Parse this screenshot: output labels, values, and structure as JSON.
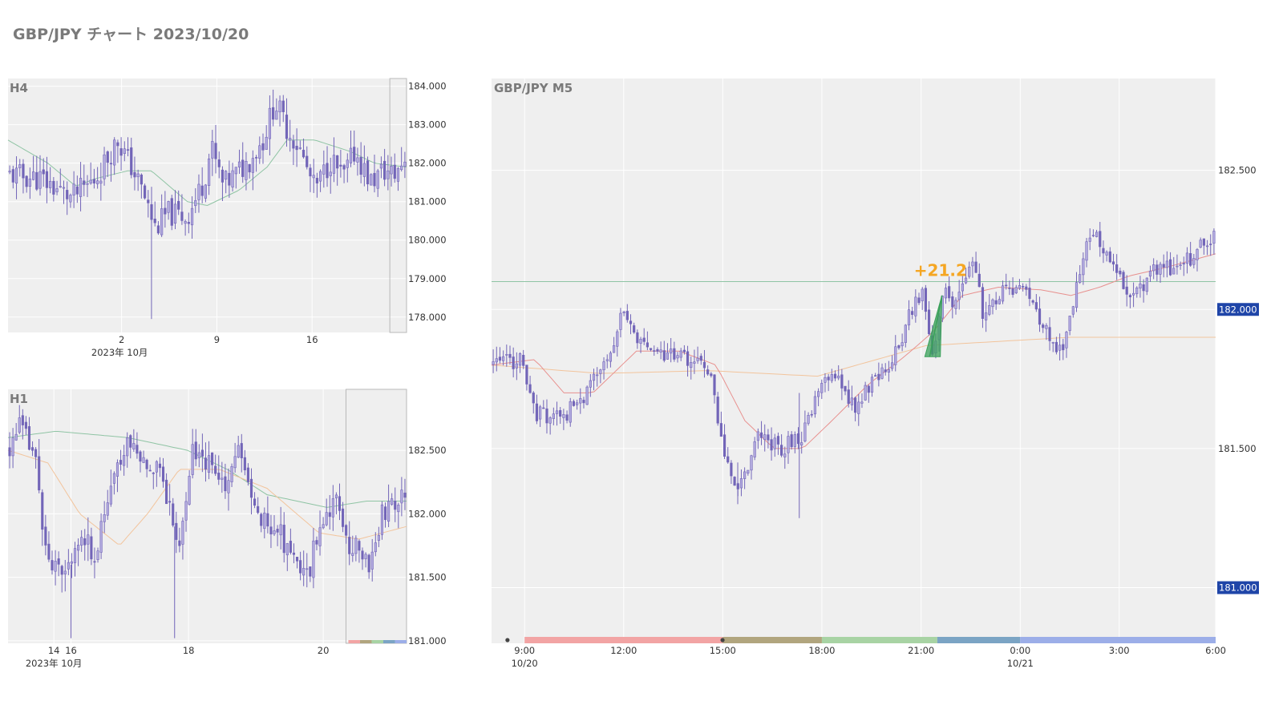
{
  "title": "GBP/JPY チャート 2023/10/20",
  "colors": {
    "plot_bg": "#efefef",
    "grid": "#ffffff",
    "candle": "#7265b8",
    "candle_light": "#b3abdf",
    "ma_green": "#8fc4a4",
    "ma_orange": "#f2c49c",
    "ma_red": "#e8908e",
    "label_gray": "#7a7a7a",
    "tick_text": "#333333",
    "badge_bg": "#1f45a8",
    "annotation": "#f5a623",
    "trade": "#3aa05a"
  },
  "chart_data": [
    {
      "id": "h4",
      "type": "candlestick",
      "panel_label": "H4",
      "ylim": [
        177.6,
        184.2
      ],
      "y_ticks": [
        "178.000",
        "179.000",
        "180.000",
        "181.000",
        "182.000",
        "183.000",
        "184.000"
      ],
      "x_ticks": [
        {
          "label": "2",
          "x": 0.285
        },
        {
          "label": "9",
          "x": 0.524
        },
        {
          "label": "16",
          "x": 0.763
        }
      ],
      "x_sublabel": "2023年 10月",
      "anchors": [
        [
          0.0,
          181.7
        ],
        [
          0.08,
          181.6
        ],
        [
          0.16,
          181.1
        ],
        [
          0.22,
          181.6
        ],
        [
          0.275,
          182.6
        ],
        [
          0.31,
          181.9
        ],
        [
          0.34,
          181.2
        ],
        [
          0.37,
          180.3
        ],
        [
          0.4,
          180.7
        ],
        [
          0.45,
          180.6
        ],
        [
          0.49,
          181.5
        ],
        [
          0.51,
          182.4
        ],
        [
          0.54,
          181.4
        ],
        [
          0.6,
          182.0
        ],
        [
          0.64,
          182.6
        ],
        [
          0.67,
          183.6
        ],
        [
          0.7,
          182.9
        ],
        [
          0.73,
          182.4
        ],
        [
          0.77,
          181.3
        ],
        [
          0.81,
          182.1
        ],
        [
          0.84,
          181.6
        ],
        [
          0.87,
          182.3
        ],
        [
          0.91,
          181.5
        ],
        [
          0.94,
          181.8
        ],
        [
          0.97,
          181.7
        ],
        [
          1.0,
          182.2
        ]
      ],
      "candle_count": 118,
      "ma": [
        {
          "color": "ma_green",
          "points": [
            [
              0.0,
              182.6
            ],
            [
              0.1,
              182.0
            ],
            [
              0.17,
              181.4
            ],
            [
              0.22,
              181.6
            ],
            [
              0.3,
              181.8
            ],
            [
              0.36,
              181.8
            ],
            [
              0.45,
              181.0
            ],
            [
              0.5,
              180.9
            ],
            [
              0.58,
              181.3
            ],
            [
              0.65,
              181.9
            ],
            [
              0.7,
              182.6
            ],
            [
              0.77,
              182.6
            ],
            [
              0.86,
              182.3
            ],
            [
              0.92,
              182.0
            ],
            [
              1.0,
              181.9
            ]
          ]
        }
      ],
      "highlight_x": [
        0.958,
        1.0
      ]
    },
    {
      "id": "h1",
      "type": "candlestick",
      "panel_label": "H1",
      "ylim": [
        180.98,
        182.98
      ],
      "y_ticks": [
        "181.000",
        "181.500",
        "182.000",
        "182.500"
      ],
      "x_ticks": [
        {
          "label": "14",
          "x": 0.115
        },
        {
          "label": "16",
          "x": 0.158
        },
        {
          "label": "18",
          "x": 0.453
        },
        {
          "label": "20",
          "x": 0.791
        }
      ],
      "x_sublabel": "2023年 10月",
      "anchors": [
        [
          0.0,
          182.5
        ],
        [
          0.03,
          182.7
        ],
        [
          0.07,
          182.4
        ],
        [
          0.1,
          181.6
        ],
        [
          0.14,
          181.5
        ],
        [
          0.17,
          181.8
        ],
        [
          0.22,
          181.7
        ],
        [
          0.26,
          182.2
        ],
        [
          0.3,
          182.6
        ],
        [
          0.34,
          182.4
        ],
        [
          0.38,
          182.4
        ],
        [
          0.41,
          182.0
        ],
        [
          0.43,
          181.7
        ],
        [
          0.46,
          182.5
        ],
        [
          0.5,
          182.4
        ],
        [
          0.54,
          182.2
        ],
        [
          0.58,
          182.5
        ],
        [
          0.62,
          182.0
        ],
        [
          0.67,
          181.9
        ],
        [
          0.71,
          181.7
        ],
        [
          0.75,
          181.5
        ],
        [
          0.79,
          182.0
        ],
        [
          0.82,
          182.1
        ],
        [
          0.85,
          181.8
        ],
        [
          0.88,
          181.7
        ],
        [
          0.91,
          181.6
        ],
        [
          0.94,
          182.0
        ],
        [
          0.97,
          182.1
        ],
        [
          1.0,
          182.2
        ]
      ],
      "candle_count": 122,
      "ma": [
        {
          "color": "ma_green",
          "points": [
            [
              0.0,
              182.6
            ],
            [
              0.12,
              182.65
            ],
            [
              0.3,
              182.6
            ],
            [
              0.45,
              182.5
            ],
            [
              0.55,
              182.35
            ],
            [
              0.65,
              182.15
            ],
            [
              0.8,
              182.05
            ],
            [
              0.9,
              182.1
            ],
            [
              1.0,
              182.1
            ]
          ]
        },
        {
          "color": "ma_orange",
          "points": [
            [
              0.0,
              182.5
            ],
            [
              0.1,
              182.4
            ],
            [
              0.18,
              182.0
            ],
            [
              0.28,
              181.75
            ],
            [
              0.35,
              182.0
            ],
            [
              0.43,
              182.35
            ],
            [
              0.53,
              182.35
            ],
            [
              0.65,
              182.2
            ],
            [
              0.78,
              181.85
            ],
            [
              0.88,
              181.8
            ],
            [
              1.0,
              181.9
            ]
          ]
        }
      ],
      "highlight_x": [
        0.848,
        1.0
      ]
    },
    {
      "id": "m5",
      "type": "candlestick",
      "panel_label": "GBP/JPY M5",
      "ylim": [
        180.8,
        182.83
      ],
      "y_ticks": [
        "181.500",
        "182.500"
      ],
      "y_badges": [
        "181.000",
        "182.000"
      ],
      "x_ticks": [
        {
          "label": "9:00",
          "x": 0.0456
        },
        {
          "label": "12:00",
          "x": 0.1825
        },
        {
          "label": "15:00",
          "x": 0.3193
        },
        {
          "label": "18:00",
          "x": 0.4562
        },
        {
          "label": "21:00",
          "x": 0.5932
        },
        {
          "label": "0:00",
          "x": 0.7301
        },
        {
          "label": "3:00",
          "x": 0.8668
        },
        {
          "label": "6:00",
          "x": 1.0
        }
      ],
      "x_sublabels": [
        {
          "label": "10/20",
          "x": 0.0456
        },
        {
          "label": "10/21",
          "x": 0.7301
        }
      ],
      "anchors": [
        [
          0.0,
          181.8
        ],
        [
          0.04,
          181.82
        ],
        [
          0.06,
          181.62
        ],
        [
          0.1,
          181.62
        ],
        [
          0.13,
          181.7
        ],
        [
          0.16,
          181.82
        ],
        [
          0.18,
          181.98
        ],
        [
          0.21,
          181.86
        ],
        [
          0.25,
          181.83
        ],
        [
          0.28,
          181.82
        ],
        [
          0.3,
          181.78
        ],
        [
          0.32,
          181.5
        ],
        [
          0.34,
          181.35
        ],
        [
          0.37,
          181.55
        ],
        [
          0.4,
          181.5
        ],
        [
          0.43,
          181.55
        ],
        [
          0.46,
          181.75
        ],
        [
          0.48,
          181.75
        ],
        [
          0.5,
          181.65
        ],
        [
          0.53,
          181.75
        ],
        [
          0.56,
          181.85
        ],
        [
          0.58,
          182.0
        ],
        [
          0.595,
          182.05
        ],
        [
          0.61,
          181.85
        ],
        [
          0.625,
          182.1
        ],
        [
          0.64,
          182.0
        ],
        [
          0.665,
          182.2
        ],
        [
          0.68,
          181.95
        ],
        [
          0.71,
          182.1
        ],
        [
          0.74,
          182.05
        ],
        [
          0.77,
          181.9
        ],
        [
          0.79,
          181.85
        ],
        [
          0.81,
          182.1
        ],
        [
          0.83,
          182.3
        ],
        [
          0.85,
          182.2
        ],
        [
          0.87,
          182.1
        ],
        [
          0.89,
          182.05
        ],
        [
          0.92,
          182.15
        ],
        [
          0.95,
          182.15
        ],
        [
          0.97,
          182.2
        ],
        [
          1.0,
          182.28
        ]
      ],
      "candle_count": 216,
      "ma": [
        {
          "color": "ma_green",
          "points": [
            [
              0.0,
              182.1
            ],
            [
              0.3,
              182.1
            ],
            [
              0.6,
              182.1
            ],
            [
              1.0,
              182.1
            ]
          ]
        },
        {
          "color": "ma_orange",
          "points": [
            [
              0.0,
              181.8
            ],
            [
              0.15,
              181.77
            ],
            [
              0.3,
              181.78
            ],
            [
              0.45,
              181.76
            ],
            [
              0.6,
              181.87
            ],
            [
              0.8,
              181.9
            ],
            [
              1.0,
              181.9
            ]
          ]
        },
        {
          "color": "ma_red",
          "points": [
            [
              0.0,
              181.8
            ],
            [
              0.06,
              181.82
            ],
            [
              0.1,
              181.7
            ],
            [
              0.14,
              181.7
            ],
            [
              0.2,
              181.85
            ],
            [
              0.26,
              181.85
            ],
            [
              0.31,
              181.8
            ],
            [
              0.35,
              181.6
            ],
            [
              0.39,
              181.5
            ],
            [
              0.43,
              181.5
            ],
            [
              0.47,
              181.6
            ],
            [
              0.52,
              181.73
            ],
            [
              0.57,
              181.83
            ],
            [
              0.61,
              181.92
            ],
            [
              0.65,
              182.05
            ],
            [
              0.7,
              182.08
            ],
            [
              0.76,
              182.07
            ],
            [
              0.8,
              182.05
            ],
            [
              0.84,
              182.08
            ],
            [
              0.88,
              182.12
            ],
            [
              0.93,
              182.15
            ],
            [
              1.0,
              182.2
            ]
          ]
        }
      ],
      "trade": {
        "x_start": 0.605,
        "y_start": 181.83,
        "x_end": 0.622,
        "y_end": 182.05
      },
      "annotation": {
        "label": "+21.2",
        "x": 0.62,
        "y": 182.12
      },
      "session_bands": [
        {
          "from": 0.0456,
          "to": 0.3193,
          "color": "#f2a4a4"
        },
        {
          "from": 0.3193,
          "to": 0.4562,
          "color": "#b1a57e"
        },
        {
          "from": 0.4562,
          "to": 0.6156,
          "color": "#a8d3a4"
        },
        {
          "from": 0.6156,
          "to": 0.7301,
          "color": "#7ba4c4"
        },
        {
          "from": 0.7301,
          "to": 1.0,
          "color": "#9caee8"
        }
      ],
      "session_markers": [
        0.022,
        0.319
      ]
    }
  ]
}
